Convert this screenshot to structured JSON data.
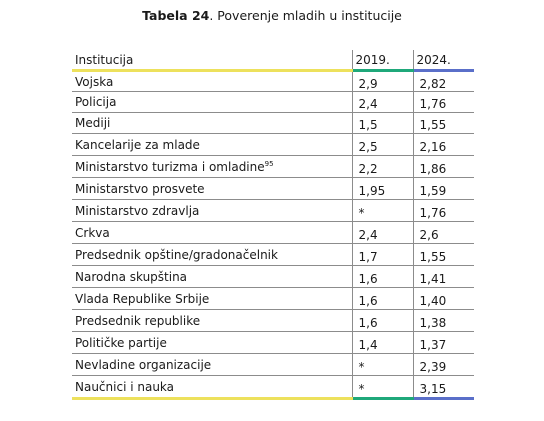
{
  "caption": {
    "label": "Tabela 24",
    "text": ". Poverenje mladih u institucije"
  },
  "table": {
    "headers": {
      "institution": "Institucija",
      "year1": "2019.",
      "year2": "2024."
    },
    "rows": [
      {
        "name": "Vojska",
        "v2019": "2,9",
        "v2024": "2,82"
      },
      {
        "name": "Policija",
        "v2019": "2,4",
        "v2024": "1,76"
      },
      {
        "name": "Mediji",
        "v2019": "1,5",
        "v2024": "1,55"
      },
      {
        "name": "Kancelarije za mlade",
        "v2019": "2,5",
        "v2024": "2,16"
      },
      {
        "name": "Ministarstvo turizma i omladine",
        "sup": "95",
        "v2019": "2,2",
        "v2024": "1,86"
      },
      {
        "name": "Ministarstvo prosvete",
        "v2019": "1,95",
        "v2024": "1,59"
      },
      {
        "name": "Ministarstvo zdravlja",
        "v2019": "*",
        "v2024": "1,76"
      },
      {
        "name": "Crkva",
        "v2019": "2,4",
        "v2024": "2,6"
      },
      {
        "name": "Predsednik opštine/gradonačelnik",
        "v2019": "1,7",
        "v2024": "1,55"
      },
      {
        "name": "Narodna skupština",
        "v2019": "1,6",
        "v2024": "1,41"
      },
      {
        "name": "Vlada Republike Srbije",
        "v2019": "1,6",
        "v2024": "1,40"
      },
      {
        "name": "Predsednik republike",
        "v2019": "1,6",
        "v2024": "1,38"
      },
      {
        "name": "Političke partije",
        "v2019": "1,4",
        "v2024": "1,37"
      },
      {
        "name": "Nevladine organizacije",
        "v2019": "*",
        "v2024": "2,39"
      },
      {
        "name": "Naučnici i nauka",
        "v2019": "*",
        "v2024": "3,15"
      }
    ]
  },
  "colors": {
    "accent_yellow": "#ede15c",
    "accent_green": "#1fa87a",
    "accent_blue": "#5a6fc9",
    "rule_gray": "#8c8c8c"
  }
}
